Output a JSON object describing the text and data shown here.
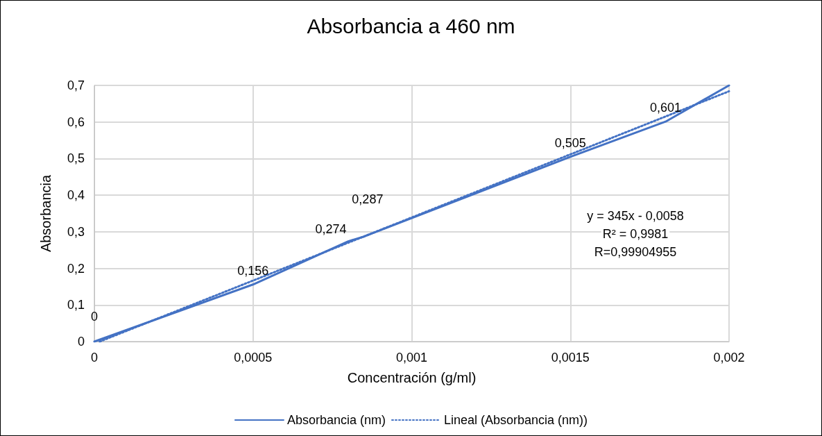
{
  "chart_data": {
    "type": "line",
    "title": "Absorbancia a 460 nm",
    "xlabel": "Concentración (g/ml)",
    "ylabel": "Absorbancia",
    "x": [
      0,
      0.0005,
      0.0008,
      0.00085,
      0.0015,
      0.0018,
      0.002
    ],
    "series": [
      {
        "name": "Absorbancia (nm)",
        "color": "#4472c4",
        "values": [
          0,
          0.156,
          0.274,
          0.287,
          0.505,
          0.601,
          0.7
        ],
        "value_labels": [
          "0",
          "0,156",
          "0,274",
          "0,287",
          "0,505",
          "0,601",
          null
        ],
        "line_style": "solid"
      },
      {
        "name": "Lineal (Absorbancia (nm))",
        "color": "#4472c4",
        "type": "line",
        "x": [
          1.68e-05,
          0.002
        ],
        "values": [
          0,
          0.684
        ],
        "line_style": "dotted"
      }
    ],
    "xlim": [
      0,
      0.002
    ],
    "xticks": [
      0,
      {
        "value": 0.0005,
        "label": "0,0005"
      },
      {
        "value": 0.001,
        "label": "0,001"
      },
      {
        "value": 0.0015,
        "label": "0,0015"
      },
      {
        "value": 0.002,
        "label": "0,002"
      }
    ],
    "ylim": [
      0,
      0.7
    ],
    "yticks": [
      0,
      {
        "value": 0.1,
        "label": "0,1"
      },
      {
        "value": 0.2,
        "label": "0,2"
      },
      {
        "value": 0.3,
        "label": "0,3"
      },
      {
        "value": 0.4,
        "label": "0,4"
      },
      {
        "value": 0.5,
        "label": "0,5"
      },
      {
        "value": 0.6,
        "label": "0,6"
      },
      {
        "value": 0.7,
        "label": "0,7"
      }
    ],
    "annotations": [
      "y = 345x - 0,0058",
      "R² = 0,9981",
      "R=0,99904955"
    ],
    "grid": true,
    "legend": "bottom",
    "marker": "none"
  }
}
